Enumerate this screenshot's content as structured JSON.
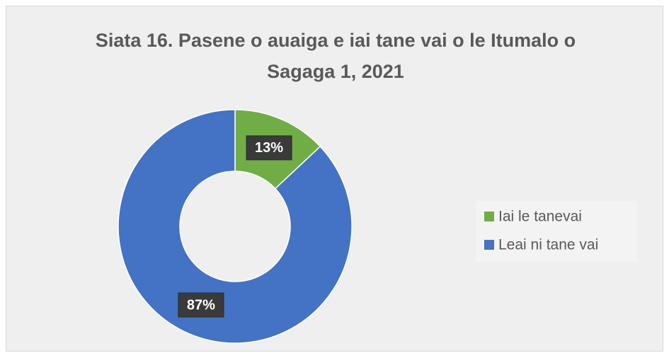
{
  "chart_data": {
    "type": "donut",
    "title": "Siata 16. Pasene o auaiga e iai tane vai o le Itumalo o Sagaga 1, 2021",
    "categories": [
      "Iai le tanevai",
      "Leai ni tane vai"
    ],
    "values": [
      13,
      87
    ],
    "value_labels": [
      "13%",
      "87%"
    ],
    "colors": [
      "#70ad47",
      "#4472c4"
    ],
    "legend": "right"
  }
}
